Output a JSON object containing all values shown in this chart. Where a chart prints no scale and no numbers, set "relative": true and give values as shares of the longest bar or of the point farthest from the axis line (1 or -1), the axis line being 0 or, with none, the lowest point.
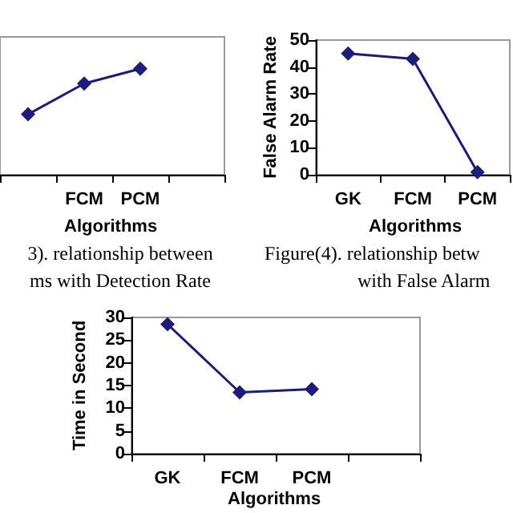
{
  "chart_data": [
    {
      "type": "line",
      "relative": true,
      "categories": [
        null,
        "FCM",
        "PCM",
        null
      ],
      "xlabel": "Algorithms",
      "series": [
        {
          "color": "#1c1c7c",
          "values": [
            0.57,
            0.86,
            1,
            null
          ]
        }
      ],
      "marker": "diamond",
      "line_style": "solid",
      "tick_labels": "x",
      "annotations": [
        "3). relationship between",
        "ms with Detection Rate"
      ]
    },
    {
      "type": "line",
      "categories": [
        "GK",
        "FCM",
        "PCM"
      ],
      "xlabel": "Algorithms",
      "ylabel": "False Alarm Rate",
      "ylim": [
        0,
        50
      ],
      "yticks": [
        0,
        10,
        20,
        30,
        40,
        50
      ],
      "series": [
        {
          "color": "#1c1c7c",
          "values": [
            45,
            43,
            1
          ]
        }
      ],
      "marker": "diamond",
      "line_style": "solid",
      "annotations": [
        "Figure(4). relationship betw",
        "with False Alarm"
      ]
    },
    {
      "type": "line",
      "categories": [
        "GK",
        "FCM",
        "PCM",
        null
      ],
      "xlabel": "Algorithms",
      "ylabel": "Time in Second",
      "ylim": [
        0,
        30
      ],
      "yticks": [
        0,
        5,
        10,
        15,
        20,
        25,
        30
      ],
      "series": [
        {
          "color": "#1c1c7c",
          "values": [
            28.5,
            13.5,
            14.2,
            null
          ]
        }
      ],
      "marker": "diamond",
      "line_style": "solid"
    }
  ]
}
